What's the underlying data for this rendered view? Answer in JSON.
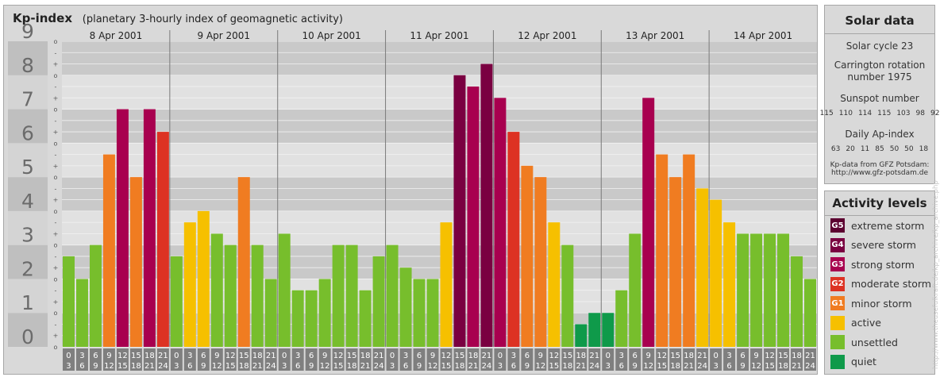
{
  "header": {
    "title": "Kp-index",
    "subtitle": "(planetary 3-hourly index of geomagnetic activity)"
  },
  "chart_data": {
    "type": "bar",
    "title": "Kp-index",
    "subtitle": "(planetary 3-hourly index of geomagnetic activity)",
    "ylim": [
      0,
      9
    ],
    "y_ticks": [
      "0",
      "1",
      "2",
      "3",
      "4",
      "5",
      "6",
      "7",
      "8",
      "9"
    ],
    "minor_tick_labels": [
      "o",
      "+",
      "-"
    ],
    "days": [
      "8 Apr 2001",
      "9 Apr 2001",
      "10 Apr 2001",
      "11 Apr 2001",
      "12 Apr 2001",
      "13 Apr 2001",
      "14 Apr 2001"
    ],
    "interval_start_labels": [
      "0",
      "3",
      "6",
      "9",
      "12",
      "15",
      "18",
      "21"
    ],
    "interval_end_labels": [
      "3",
      "6",
      "9",
      "12",
      "15",
      "18",
      "21",
      "24"
    ],
    "values": [
      [
        2.667,
        2.0,
        3.0,
        5.667,
        7.0,
        5.0,
        7.0,
        6.333
      ],
      [
        2.667,
        3.667,
        4.0,
        3.333,
        3.0,
        5.0,
        3.0,
        2.0
      ],
      [
        3.333,
        1.667,
        1.667,
        2.0,
        3.0,
        3.0,
        1.667,
        2.667
      ],
      [
        3.0,
        2.333,
        2.0,
        2.0,
        3.667,
        8.0,
        7.667,
        8.333
      ],
      [
        7.333,
        6.333,
        5.333,
        5.0,
        3.667,
        3.0,
        0.667,
        1.0
      ],
      [
        1.0,
        1.667,
        3.333,
        7.333,
        5.667,
        5.0,
        5.667,
        4.667
      ],
      [
        4.333,
        3.667,
        3.333,
        3.333,
        3.333,
        3.333,
        2.667,
        2.0
      ]
    ],
    "grid": true
  },
  "solar": {
    "title": "Solar data",
    "cycle": "Solar cycle 23",
    "carrington_line1": "Carrington rotation",
    "carrington_line2": "number 1975",
    "sunspot_label": "Sunspot number",
    "sunspot_values": [
      "115",
      "110",
      "114",
      "115",
      "103",
      "98",
      "92"
    ],
    "ap_label": "Daily Ap-index",
    "ap_values": [
      "63",
      "20",
      "11",
      "85",
      "50",
      "50",
      "18"
    ],
    "source_line1": "Kp-data from GFZ Potsdam:",
    "source_line2": "http://www.gfz-potsdam.de"
  },
  "legend": {
    "title": "Activity levels",
    "items": [
      {
        "code": "G5",
        "label": "extreme storm",
        "color": "#5c0030"
      },
      {
        "code": "G4",
        "label": "severe storm",
        "color": "#7a0041"
      },
      {
        "code": "G3",
        "label": "strong storm",
        "color": "#a8004f"
      },
      {
        "code": "G2",
        "label": "moderate storm",
        "color": "#dd3223"
      },
      {
        "code": "G1",
        "label": "minor storm",
        "color": "#f07c21"
      },
      {
        "code": "",
        "label": "active",
        "color": "#f6c000"
      },
      {
        "code": "",
        "label": "unsettled",
        "color": "#77be2c"
      },
      {
        "code": "",
        "label": "quiet",
        "color": "#0f9a4a"
      }
    ]
  },
  "watermark": "http://www.theusefulkraft.de/kp_archive/kp_archive.php"
}
